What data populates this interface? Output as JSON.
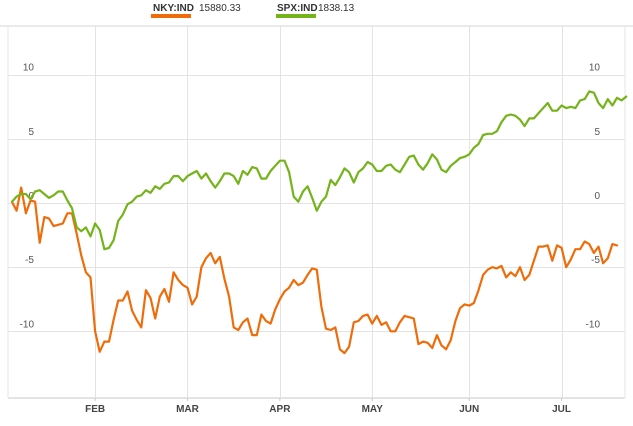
{
  "legend": {
    "items": [
      {
        "label": "NKY:IND",
        "value": "15880.33",
        "color": "#ef6c0b"
      },
      {
        "label": "SPX:IND",
        "value": "1838.13",
        "color": "#74b31a"
      }
    ]
  },
  "chart_data": {
    "type": "line",
    "title": "",
    "xlabel": "",
    "ylabel": "",
    "ylim": [
      -15.2,
      13.8
    ],
    "y_ticks": [
      10,
      5,
      0,
      -5,
      -10
    ],
    "y_tick_labels": [
      "10",
      "5",
      "0",
      "-5",
      "-10"
    ],
    "x_ticks": [
      "FEB",
      "MAR",
      "APR",
      "MAY",
      "JUN",
      "JUL"
    ],
    "x_tick_index": [
      18,
      38,
      58,
      78,
      99,
      119
    ],
    "grid": true,
    "legend_position": "top",
    "series": [
      {
        "name": "NKY:IND",
        "color": "#ef6c0b",
        "values": [
          0.1,
          -0.6,
          1.2,
          -0.8,
          0.2,
          0.1,
          -3.1,
          -1.1,
          -1.2,
          -1.8,
          -1.7,
          -1.6,
          -0.8,
          -0.8,
          -2.4,
          -4.1,
          -5.4,
          -5.8,
          -10.0,
          -11.6,
          -10.8,
          -10.8,
          -9.1,
          -7.6,
          -7.6,
          -6.9,
          -8.4,
          -9.1,
          -9.7,
          -6.8,
          -7.4,
          -9.0,
          -7.3,
          -6.7,
          -7.7,
          -5.4,
          -6.0,
          -6.4,
          -6.6,
          -7.9,
          -7.3,
          -5.0,
          -4.3,
          -3.9,
          -4.7,
          -4.2,
          -5.9,
          -7.3,
          -9.7,
          -9.9,
          -9.3,
          -9.0,
          -10.3,
          -10.3,
          -8.7,
          -9.2,
          -9.4,
          -8.3,
          -7.5,
          -6.9,
          -6.6,
          -6.0,
          -6.4,
          -6.2,
          -5.6,
          -5.1,
          -5.2,
          -8.1,
          -9.8,
          -9.9,
          -9.7,
          -11.4,
          -11.7,
          -11.2,
          -9.3,
          -9.2,
          -8.8,
          -8.7,
          -9.4,
          -8.8,
          -9.5,
          -9.3,
          -10.0,
          -10.0,
          -9.3,
          -8.8,
          -8.9,
          -9.0,
          -11.0,
          -10.8,
          -10.9,
          -11.3,
          -10.3,
          -11.1,
          -11.4,
          -10.7,
          -9.2,
          -8.2,
          -7.9,
          -8.0,
          -7.8,
          -6.8,
          -5.6,
          -5.2,
          -5.0,
          -5.1,
          -4.9,
          -5.8,
          -5.4,
          -5.7,
          -5.0,
          -6.0,
          -5.6,
          -4.5,
          -3.4,
          -3.4,
          -3.3,
          -4.5,
          -3.3,
          -3.5,
          -5.0,
          -4.4,
          -3.6,
          -3.6,
          -3.0,
          -3.2,
          -3.9,
          -3.4,
          -4.7,
          -4.3,
          -3.2,
          -3.3
        ]
      },
      {
        "name": "SPX:IND",
        "color": "#74b31a",
        "values": [
          0.1,
          0.5,
          0.7,
          0.7,
          0.3,
          0.9,
          1.0,
          0.7,
          0.4,
          0.6,
          0.9,
          0.9,
          0.2,
          -0.4,
          -1.9,
          -2.2,
          -1.9,
          -2.6,
          -1.6,
          -2.1,
          -3.6,
          -3.5,
          -2.9,
          -1.4,
          -0.9,
          -0.1,
          0.1,
          0.5,
          0.6,
          1.0,
          0.8,
          1.3,
          1.1,
          1.5,
          1.6,
          2.1,
          2.1,
          1.7,
          2.1,
          2.3,
          2.5,
          1.9,
          2.3,
          1.7,
          1.2,
          1.7,
          2.3,
          2.3,
          2.1,
          1.5,
          2.5,
          2.2,
          2.8,
          2.7,
          1.9,
          1.9,
          2.5,
          2.9,
          3.3,
          3.3,
          2.4,
          0.5,
          0.1,
          0.9,
          1.3,
          0.4,
          -0.6,
          0.1,
          0.5,
          1.8,
          1.4,
          2.0,
          2.7,
          2.4,
          1.6,
          2.4,
          2.7,
          3.2,
          3.0,
          2.5,
          2.5,
          2.9,
          3.0,
          2.6,
          2.4,
          3.0,
          3.6,
          3.7,
          3.0,
          2.6,
          3.1,
          3.8,
          3.4,
          2.6,
          2.4,
          2.9,
          3.2,
          3.5,
          3.6,
          3.8,
          4.3,
          4.6,
          5.3,
          5.4,
          5.4,
          5.6,
          6.3,
          6.8,
          6.9,
          6.8,
          6.5,
          6.0,
          6.6,
          6.6,
          7.0,
          7.4,
          7.8,
          7.2,
          7.2,
          7.6,
          7.4,
          7.5,
          7.4,
          8.0,
          8.1,
          8.7,
          8.6,
          7.8,
          7.4,
          8.1,
          7.6,
          8.2,
          8.0,
          8.3
        ]
      }
    ]
  }
}
